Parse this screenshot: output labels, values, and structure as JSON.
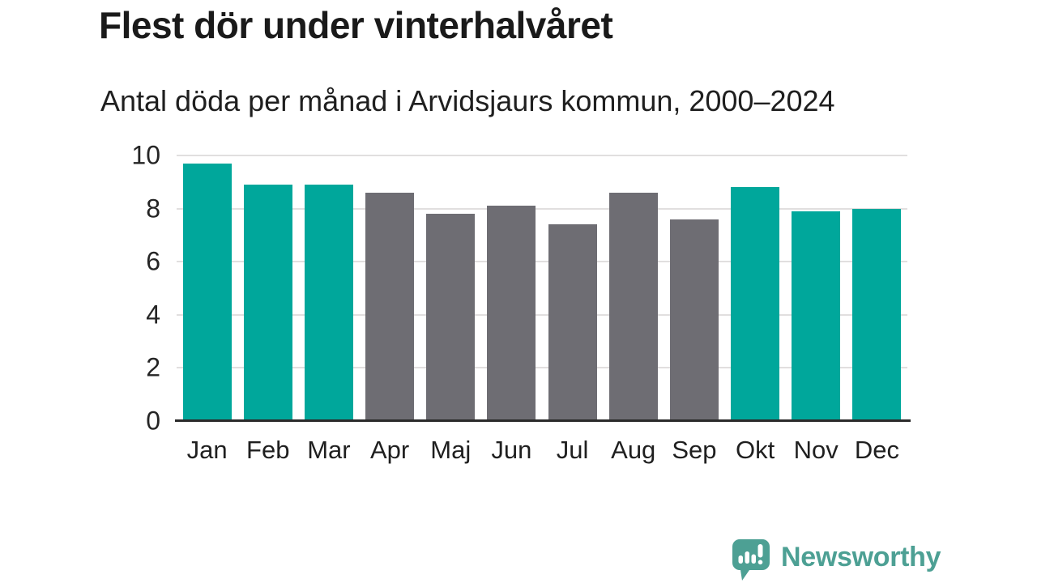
{
  "header": {
    "title": "Flest dör under vinterhalvåret",
    "subtitle": "Antal döda per månad i Arvidsjaurs kommun, 2000–2024"
  },
  "chart_data": {
    "type": "bar",
    "title": "Flest dör under vinterhalvåret",
    "subtitle": "Antal döda per månad i Arvidsjaurs kommun, 2000–2024",
    "categories": [
      "Jan",
      "Feb",
      "Mar",
      "Apr",
      "Maj",
      "Jun",
      "Jul",
      "Aug",
      "Sep",
      "Okt",
      "Nov",
      "Dec"
    ],
    "values": [
      9.7,
      8.9,
      8.9,
      8.6,
      7.8,
      8.1,
      7.4,
      8.6,
      7.6,
      8.8,
      7.9,
      8.0
    ],
    "bar_colors": [
      "teal",
      "teal",
      "teal",
      "gray",
      "gray",
      "gray",
      "gray",
      "gray",
      "gray",
      "teal",
      "teal",
      "teal"
    ],
    "palette": {
      "teal": "#00a79b",
      "gray": "#6e6d73"
    },
    "highlight_meaning": "winter-half-year months highlighted in teal",
    "xlabel": "",
    "ylabel": "",
    "ylim": [
      0,
      10
    ],
    "yticks": [
      0,
      2,
      4,
      6,
      8,
      10
    ],
    "grid": "horizontal",
    "legend": "none",
    "gridline_color": "#e1dfdf",
    "axis_line_color": "#2b2b2b"
  },
  "branding": {
    "logo_text": "Newsworthy",
    "logo_color": "#4da094",
    "logo_icon": "bar-chart-speech-bubble-icon"
  }
}
